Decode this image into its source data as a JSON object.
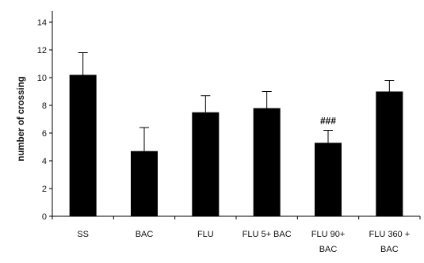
{
  "chart_data": {
    "type": "bar",
    "categories": [
      [
        "SS"
      ],
      [
        "BAC"
      ],
      [
        "FLU"
      ],
      [
        "FLU 5+ BAC"
      ],
      [
        "FLU 90+",
        "BAC"
      ],
      [
        "FLU 360 +",
        "BAC"
      ]
    ],
    "values": [
      10.2,
      4.7,
      7.5,
      7.8,
      5.3,
      9.0
    ],
    "error_upper": [
      11.8,
      6.4,
      8.7,
      9.0,
      6.2,
      9.8
    ],
    "annotations": [
      {
        "category_index": 4,
        "text": "###"
      }
    ],
    "ylabel": "number of crossing",
    "xlabel": "",
    "title": "",
    "ylim": [
      0,
      14
    ],
    "yticks": [
      0,
      2,
      4,
      6,
      8,
      10,
      12,
      14
    ],
    "bar_color": "#000000",
    "grid": false,
    "legend": "none"
  }
}
